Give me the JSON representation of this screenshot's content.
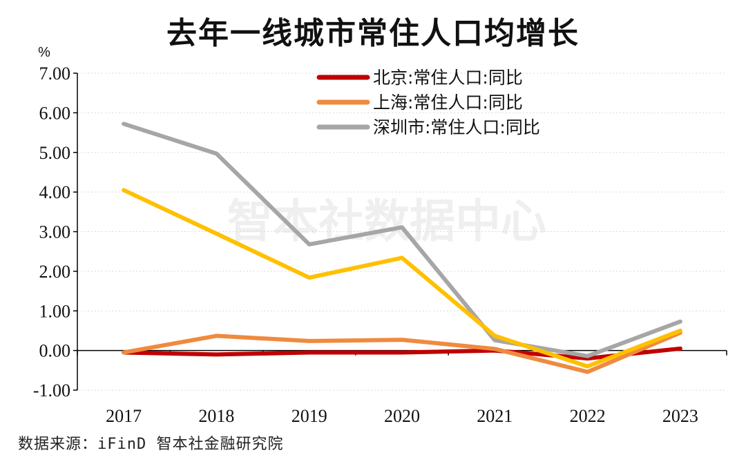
{
  "chart_data": {
    "type": "line",
    "title": "去年一线城市常住人口均增长",
    "unit_label": "%",
    "categories": [
      "2017",
      "2018",
      "2019",
      "2020",
      "2021",
      "2022",
      "2023"
    ],
    "ylim": [
      -1.0,
      7.0
    ],
    "yticks": [
      "7.00",
      "6.00",
      "5.00",
      "4.00",
      "3.00",
      "2.00",
      "1.00",
      "0.00",
      "-1.00"
    ],
    "grid": "horizontal-dotted",
    "legend_position": "top-right",
    "series": [
      {
        "name": "北京:常住人口:同比",
        "color": "#c00000",
        "legend_color": "#c00000",
        "values": [
          -0.05,
          -0.1,
          -0.05,
          -0.05,
          0.0,
          -0.2,
          0.05
        ]
      },
      {
        "name": "上海:常住人口:同比",
        "color": "#ef8a3e",
        "legend_color": "#ef8a3e",
        "values": [
          -0.05,
          0.37,
          0.24,
          0.27,
          0.04,
          -0.54,
          0.45
        ]
      },
      {
        "name": "深圳市:常住人口:同比",
        "color": "#a6a6a6",
        "legend_color": "#a6a6a6",
        "values": [
          5.72,
          4.97,
          2.68,
          3.11,
          0.26,
          -0.14,
          0.73
        ]
      },
      {
        "name": "",
        "color": "#ffc000",
        "legend_color": "",
        "values": [
          4.05,
          2.95,
          1.84,
          2.34,
          0.37,
          -0.4,
          0.5
        ]
      }
    ]
  },
  "watermark": "智本社数据中心",
  "source": "数据来源：iFinD 智本社金融研究院"
}
